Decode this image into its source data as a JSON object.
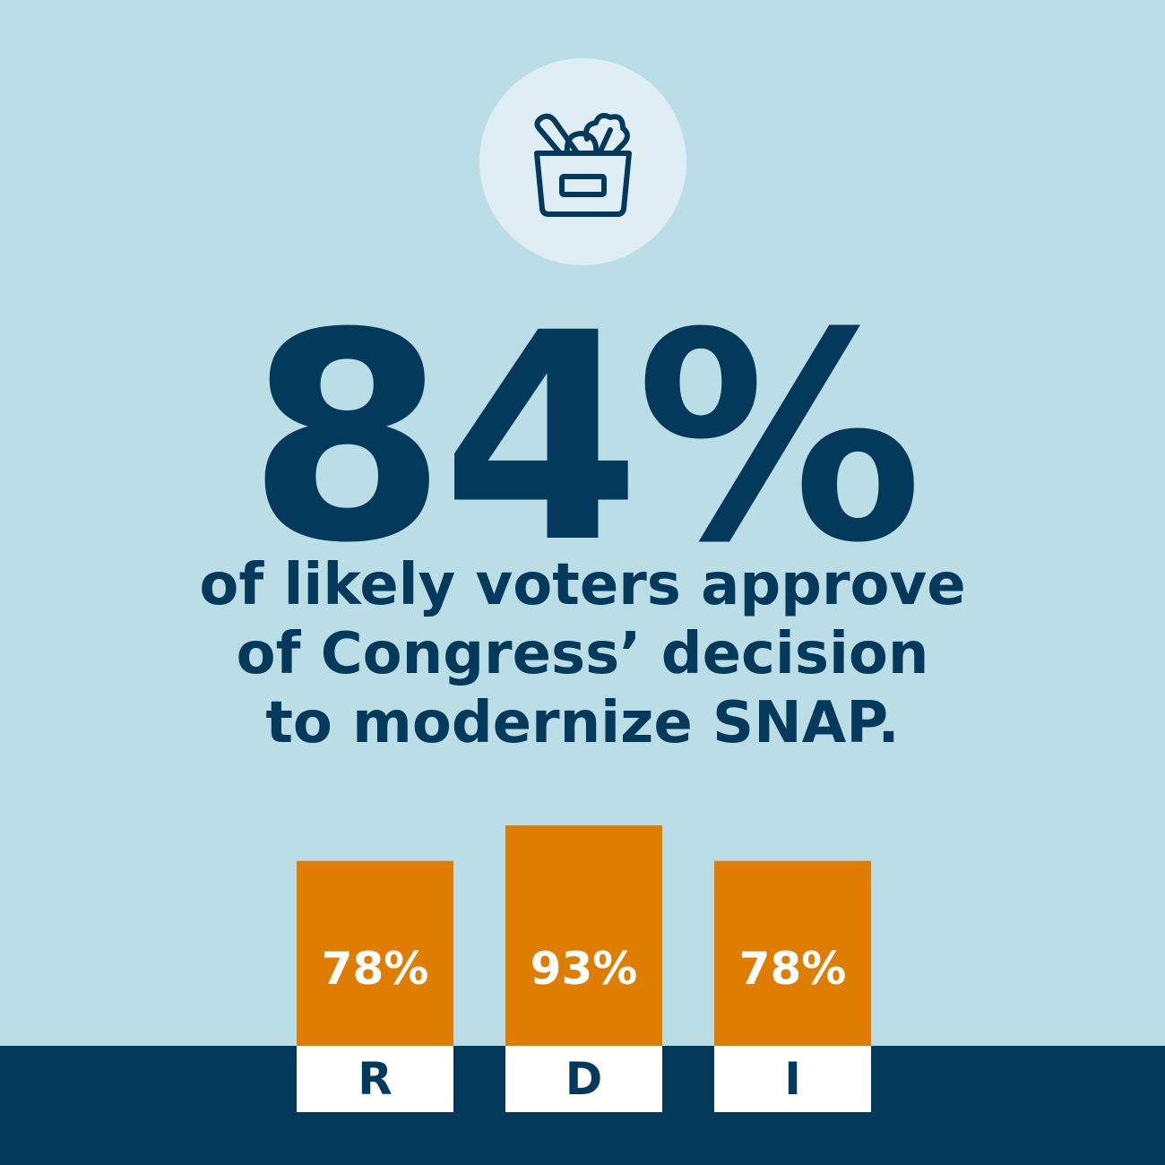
{
  "colors": {
    "background": "#bbdde6",
    "navy": "#033a5b",
    "bar": "#df7d00",
    "label_box": "#ffffff",
    "icon_circle": "#dfeef4"
  },
  "icon": {
    "name": "grocery-bag-icon"
  },
  "headline": {
    "stat": "84%",
    "line1": "of likely voters approve",
    "line2": "of Congress’ decision",
    "line3": "to modernize SNAP."
  },
  "chart_data": {
    "type": "bar",
    "title": "",
    "xlabel": "",
    "ylabel": "",
    "categories": [
      "R",
      "D",
      "I"
    ],
    "values": [
      78,
      93,
      78
    ],
    "value_labels": [
      "78%",
      "93%",
      "78%"
    ],
    "ylim": [
      0,
      100
    ],
    "grid": false
  }
}
